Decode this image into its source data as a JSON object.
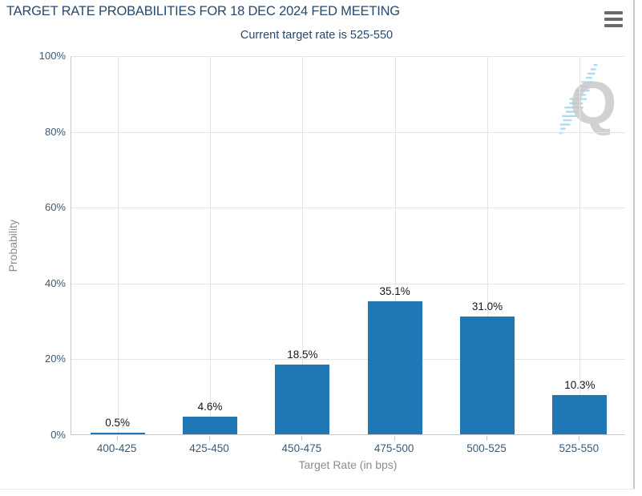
{
  "header": {
    "title": "TARGET RATE PROBABILITIES FOR 18 DEC 2024 FED MEETING",
    "subtitle": "Current target rate is 525-550"
  },
  "icons": {
    "menu": "hamburger-icon",
    "watermark": "quikstrike-q-logo"
  },
  "colors": {
    "bar": "#2077b5",
    "title_text": "#27496d",
    "tick_text": "#3b5a77",
    "value_text": "#161616",
    "axis_title_text": "#8c8c8c",
    "gridline": "#e4e4e4",
    "axis_line": "#c9c9c9",
    "menu_icon": "#6a6a6a",
    "watermark_q": "#c9c9c9",
    "watermark_dash": "#aadcf4"
  },
  "chart_data": {
    "type": "bar",
    "title": "TARGET RATE PROBABILITIES FOR 18 DEC 2024 FED MEETING",
    "subtitle": "Current target rate is 525-550",
    "categories": [
      "400-425",
      "425-450",
      "450-475",
      "475-500",
      "500-525",
      "525-550"
    ],
    "values": [
      0.5,
      4.6,
      18.5,
      35.1,
      31.0,
      10.3
    ],
    "value_labels": [
      "0.5%",
      "4.6%",
      "18.5%",
      "35.1%",
      "31.0%",
      "10.3%"
    ],
    "xlabel": "Target Rate (in bps)",
    "ylabel": "Probability",
    "ylim": [
      0,
      100
    ],
    "ytick_step": 20,
    "ytick_labels": [
      "0%",
      "20%",
      "40%",
      "60%",
      "80%",
      "100%"
    ],
    "grid": true,
    "legend_position": "none"
  }
}
